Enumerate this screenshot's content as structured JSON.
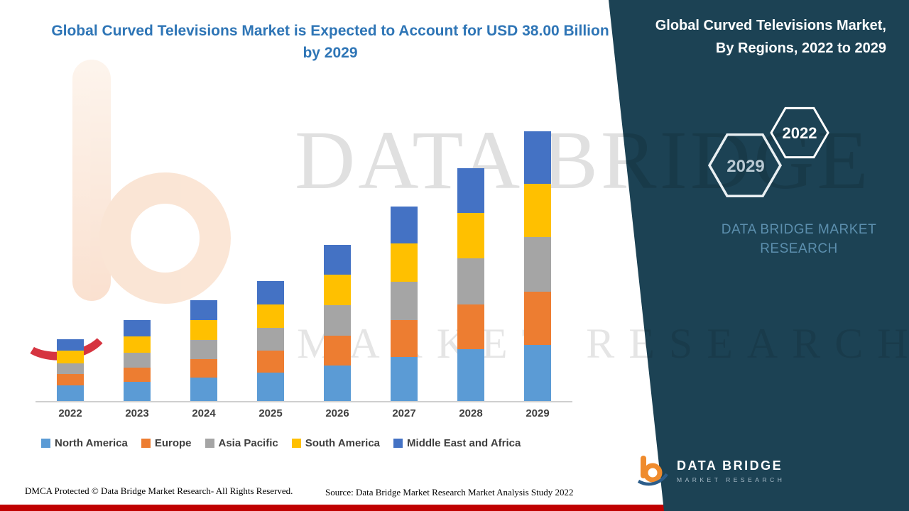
{
  "title": "Global Curved Televisions Market is Expected to Account for USD 38.00 Billion by 2029",
  "watermark": {
    "line1": "DATA BRIDGE",
    "line2": "MARKET RESEARCH"
  },
  "footer": {
    "dmca": "DMCA Protected © Data Bridge Market Research- All Rights Reserved.",
    "source": "Source: Data Bridge Market Research Market Analysis Study 2022"
  },
  "panel": {
    "title": "Global Curved Televisions Market, By Regions, 2022 to 2029",
    "badge_2022": "2022",
    "badge_2029": "2029",
    "brand_line1": "DATA BRIDGE MARKET",
    "brand_line2": "RESEARCH",
    "logo": {
      "name": "DATA BRIDGE",
      "sub": "MARKET RESEARCH"
    }
  },
  "colors": {
    "title_blue": "#2e75b6",
    "panel_bg": "#1c4254",
    "red_stripe": "#c00000",
    "axis_gray": "#cfcfcf"
  },
  "chart_data": {
    "type": "bar",
    "stacked": true,
    "title": "Global Curved Televisions Market is Expected to Account for USD 38.00 Billion by 2029",
    "xlabel": "",
    "ylabel": "",
    "unit": "USD Billion",
    "ylim": [
      0,
      40
    ],
    "grid": false,
    "legend_position": "bottom",
    "categories": [
      "2022",
      "2023",
      "2024",
      "2025",
      "2026",
      "2027",
      "2028",
      "2029"
    ],
    "series": [
      {
        "name": "North America",
        "color": "#5b9bd5",
        "values": [
          2.2,
          2.7,
          3.3,
          4.0,
          5.0,
          6.2,
          7.3,
          7.9
        ]
      },
      {
        "name": "Europe",
        "color": "#ed7d31",
        "values": [
          1.6,
          2.0,
          2.6,
          3.1,
          4.2,
          5.2,
          6.3,
          7.5
        ]
      },
      {
        "name": "Asia Pacific",
        "color": "#a5a5a5",
        "values": [
          1.5,
          2.1,
          2.7,
          3.2,
          4.3,
          5.4,
          6.5,
          7.7
        ]
      },
      {
        "name": "South America",
        "color": "#ffc000",
        "values": [
          1.8,
          2.3,
          2.8,
          3.3,
          4.3,
          5.4,
          6.4,
          7.5
        ]
      },
      {
        "name": "Middle East and Africa",
        "color": "#4472c4",
        "values": [
          1.6,
          2.3,
          2.8,
          3.3,
          4.2,
          5.2,
          6.3,
          7.4
        ]
      }
    ],
    "totals": [
      8.7,
      11.4,
      14.2,
      16.9,
      22.0,
      27.4,
      32.8,
      38.0
    ]
  }
}
